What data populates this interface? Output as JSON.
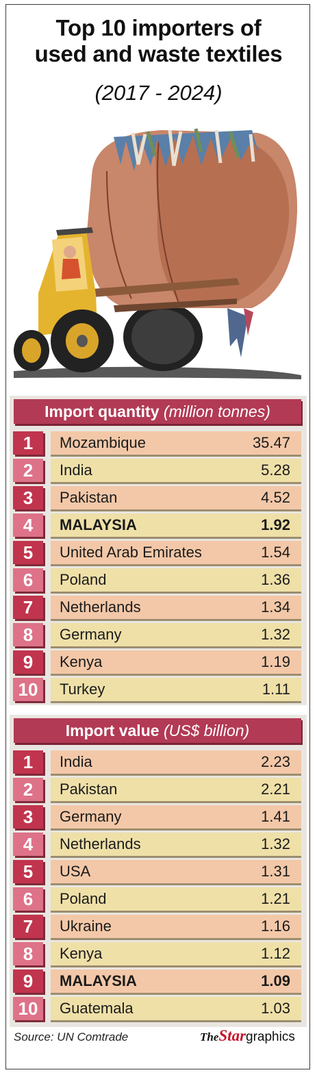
{
  "title_line1": "Top 10 importers of",
  "title_line2": "used and waste textiles",
  "subtitle": "(2017 - 2024)",
  "colors": {
    "header": "#b23a55",
    "rank_dark": "#c1344d",
    "rank_light": "#de7288",
    "row_peach": "#f3c8a8",
    "row_cream": "#efe0a8",
    "accent_red": "#c4162a"
  },
  "chart_data": [
    {
      "type": "table",
      "title_bold": "Import quantity",
      "title_unit": "(million tonnes)",
      "rows": [
        {
          "rank": "1",
          "country": "Mozambique",
          "value": "35.47"
        },
        {
          "rank": "2",
          "country": "India",
          "value": "5.28"
        },
        {
          "rank": "3",
          "country": "Pakistan",
          "value": "4.52"
        },
        {
          "rank": "4",
          "country": "MALAYSIA",
          "value": "1.92",
          "highlight": true
        },
        {
          "rank": "5",
          "country": "United Arab Emirates",
          "value": "1.54"
        },
        {
          "rank": "6",
          "country": "Poland",
          "value": "1.36"
        },
        {
          "rank": "7",
          "country": "Netherlands",
          "value": "1.34"
        },
        {
          "rank": "8",
          "country": "Germany",
          "value": "1.32"
        },
        {
          "rank": "9",
          "country": "Kenya",
          "value": "1.19"
        },
        {
          "rank": "10",
          "country": "Turkey",
          "value": "1.11"
        }
      ]
    },
    {
      "type": "table",
      "title_bold": "Import value",
      "title_unit": "(US$ billion)",
      "rows": [
        {
          "rank": "1",
          "country": "India",
          "value": "2.23"
        },
        {
          "rank": "2",
          "country": "Pakistan",
          "value": "2.21"
        },
        {
          "rank": "3",
          "country": "Germany",
          "value": "1.41"
        },
        {
          "rank": "4",
          "country": "Netherlands",
          "value": "1.32"
        },
        {
          "rank": "5",
          "country": "USA",
          "value": "1.31"
        },
        {
          "rank": "6",
          "country": "Poland",
          "value": "1.21"
        },
        {
          "rank": "7",
          "country": "Ukraine",
          "value": "1.16"
        },
        {
          "rank": "8",
          "country": "Kenya",
          "value": "1.12"
        },
        {
          "rank": "9",
          "country": "MALAYSIA",
          "value": "1.09",
          "highlight": true
        },
        {
          "rank": "10",
          "country": "Guatemala",
          "value": "1.03"
        }
      ]
    }
  ],
  "source": "Source: UN Comtrade",
  "logo": {
    "the": "The",
    "star": "Star",
    "graphics": "graphics"
  }
}
